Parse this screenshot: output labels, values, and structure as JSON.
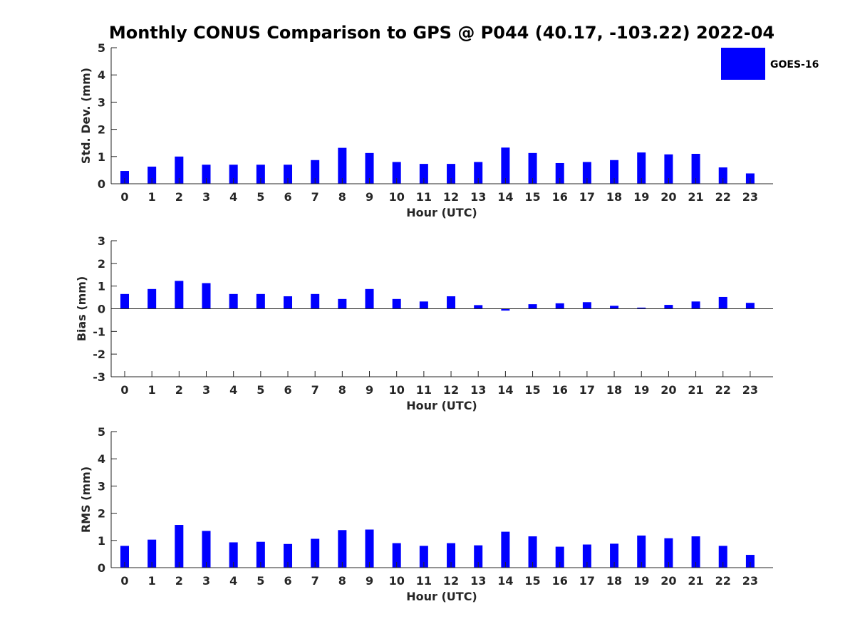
{
  "title": "Monthly CONUS Comparison to GPS @ P044 (40.17, -103.22) 2022-04",
  "legend": {
    "label": "GOES-16",
    "color": "#0000ff",
    "position": "top-right"
  },
  "chart_data": [
    {
      "type": "bar",
      "xlabel": "Hour (UTC)",
      "ylabel": "Std. Dev. (mm)",
      "ylim": [
        0,
        5
      ],
      "yticks": [
        0,
        1,
        2,
        3,
        4,
        5
      ],
      "categories": [
        "0",
        "1",
        "2",
        "3",
        "4",
        "5",
        "6",
        "7",
        "8",
        "9",
        "10",
        "11",
        "12",
        "13",
        "14",
        "15",
        "16",
        "17",
        "18",
        "19",
        "20",
        "21",
        "22",
        "23"
      ],
      "series": [
        {
          "name": "GOES-16",
          "color": "#0000ff",
          "values": [
            0.47,
            0.63,
            1.0,
            0.7,
            0.7,
            0.7,
            0.7,
            0.87,
            1.32,
            1.13,
            0.8,
            0.73,
            0.73,
            0.8,
            1.33,
            1.13,
            0.76,
            0.8,
            0.87,
            1.15,
            1.08,
            1.1,
            0.6,
            0.38
          ]
        }
      ],
      "grid": false
    },
    {
      "type": "bar",
      "xlabel": "Hour (UTC)",
      "ylabel": "Bias (mm)",
      "ylim": [
        -3,
        3
      ],
      "yticks": [
        -3,
        -2,
        -1,
        0,
        1,
        2,
        3
      ],
      "categories": [
        "0",
        "1",
        "2",
        "3",
        "4",
        "5",
        "6",
        "7",
        "8",
        "9",
        "10",
        "11",
        "12",
        "13",
        "14",
        "15",
        "16",
        "17",
        "18",
        "19",
        "20",
        "21",
        "22",
        "23"
      ],
      "series": [
        {
          "name": "GOES-16",
          "color": "#0000ff",
          "values": [
            0.65,
            0.87,
            1.23,
            1.13,
            0.65,
            0.65,
            0.55,
            0.65,
            0.43,
            0.87,
            0.43,
            0.32,
            0.55,
            0.16,
            -0.08,
            0.2,
            0.24,
            0.29,
            0.13,
            0.05,
            0.17,
            0.32,
            0.52,
            0.26
          ]
        }
      ],
      "grid": false
    },
    {
      "type": "bar",
      "xlabel": "Hour (UTC)",
      "ylabel": "RMS (mm)",
      "ylim": [
        0,
        5
      ],
      "yticks": [
        0,
        1,
        2,
        3,
        4,
        5
      ],
      "categories": [
        "0",
        "1",
        "2",
        "3",
        "4",
        "5",
        "6",
        "7",
        "8",
        "9",
        "10",
        "11",
        "12",
        "13",
        "14",
        "15",
        "16",
        "17",
        "18",
        "19",
        "20",
        "21",
        "22",
        "23"
      ],
      "series": [
        {
          "name": "GOES-16",
          "color": "#0000ff",
          "values": [
            0.8,
            1.03,
            1.57,
            1.35,
            0.93,
            0.95,
            0.87,
            1.06,
            1.38,
            1.4,
            0.9,
            0.8,
            0.9,
            0.82,
            1.32,
            1.15,
            0.77,
            0.85,
            0.88,
            1.18,
            1.08,
            1.15,
            0.8,
            0.47
          ]
        }
      ],
      "grid": false
    }
  ]
}
